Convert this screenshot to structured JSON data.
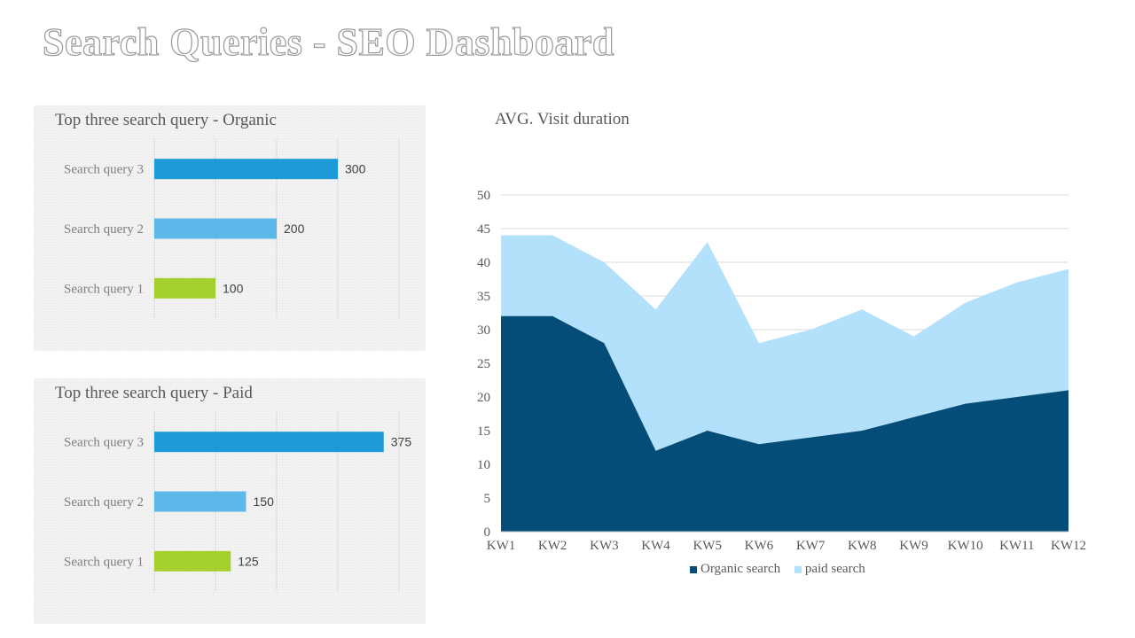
{
  "page": {
    "title": "Search Queries - SEO Dashboard"
  },
  "chart_data": [
    {
      "type": "bar",
      "orientation": "horizontal",
      "title": "Top three search query - Organic",
      "categories": [
        "Search query 3",
        "Search query 2",
        "Search query 1"
      ],
      "values": [
        300,
        200,
        100
      ],
      "colors": [
        "#1f9ad9",
        "#5cb8e8",
        "#a5cf2d"
      ],
      "xlim": [
        0,
        400
      ],
      "grid": true,
      "data_labels": true
    },
    {
      "type": "bar",
      "orientation": "horizontal",
      "title": "Top three search query - Paid",
      "categories": [
        "Search query 3",
        "Search query 2",
        "Search query 1"
      ],
      "values": [
        375,
        150,
        125
      ],
      "colors": [
        "#1f9ad9",
        "#5cb8e8",
        "#a5cf2d"
      ],
      "xlim": [
        0,
        400
      ],
      "grid": true,
      "data_labels": true
    },
    {
      "type": "area",
      "stacked": true,
      "title": "AVG. Visit duration",
      "categories": [
        "KW1",
        "KW2",
        "KW3",
        "KW4",
        "KW5",
        "KW6",
        "KW7",
        "KW8",
        "KW9",
        "KW10",
        "KW11",
        "KW12"
      ],
      "series": [
        {
          "name": "Organic search",
          "color": "#044d78",
          "values": [
            32,
            32,
            28,
            12,
            15,
            13,
            14,
            15,
            17,
            19,
            20,
            21
          ]
        },
        {
          "name": "paid search",
          "color": "#b3e0fb",
          "values": [
            12,
            12,
            12,
            21,
            28,
            15,
            16,
            18,
            12,
            15,
            17,
            18
          ]
        }
      ],
      "ylim": [
        0,
        50
      ],
      "yticks": [
        0,
        5,
        10,
        15,
        20,
        25,
        30,
        35,
        40,
        45,
        50
      ],
      "grid": true,
      "legend_position": "bottom"
    }
  ]
}
